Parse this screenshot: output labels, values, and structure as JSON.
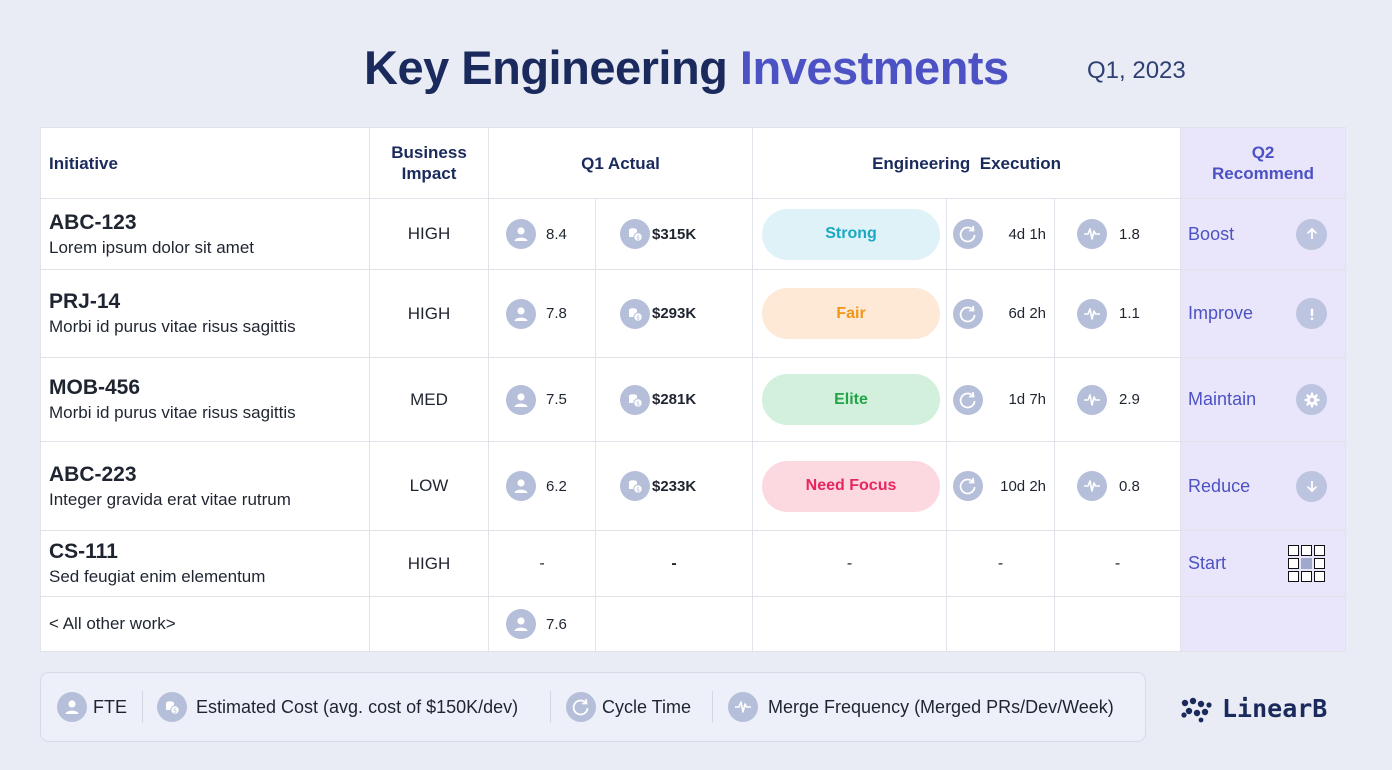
{
  "header": {
    "title_main": "Key Engineering",
    "title_accent": "Investments",
    "period": "Q1, 2023"
  },
  "table": {
    "headers": {
      "initiative": "Initiative",
      "impact": "Business Impact",
      "actual": "Q1 Actual",
      "execution": "Engineering  Execution",
      "recommend": "Q2 Recommend"
    },
    "rows": [
      {
        "id": "ABC-123",
        "desc": "Lorem ipsum dolor sit amet",
        "impact": "HIGH",
        "fte": "8.4",
        "cost": "$315K",
        "status": "Strong",
        "cycle": "4d 1h",
        "merge": "1.8",
        "rec": "Boost",
        "rec_icon": "arrow-up-icon"
      },
      {
        "id": "PRJ-14",
        "desc": "Morbi id purus vitae risus sagittis",
        "impact": "HIGH",
        "fte": "7.8",
        "cost": "$293K",
        "status": "Fair",
        "cycle": "6d 2h",
        "merge": "1.1",
        "rec": "Improve",
        "rec_icon": "exclamation-icon"
      },
      {
        "id": "MOB-456",
        "desc": "Morbi id purus vitae risus sagittis",
        "impact": "MED",
        "fte": "7.5",
        "cost": "$281K",
        "status": "Elite",
        "cycle": "1d 7h",
        "merge": "2.9",
        "rec": "Maintain",
        "rec_icon": "gear-icon"
      },
      {
        "id": "ABC-223",
        "desc": "Integer gravida erat vitae rutrum",
        "impact": "LOW",
        "fte": "6.2",
        "cost": "$233K",
        "status": "Need Focus",
        "cycle": "10d 2h",
        "merge": "0.8",
        "rec": "Reduce",
        "rec_icon": "arrow-down-icon"
      },
      {
        "id": "CS-111",
        "desc": "Sed feugiat enim elementum",
        "impact": "HIGH",
        "fte": "-",
        "cost": "-",
        "status": "-",
        "cycle": "-",
        "merge": "-",
        "rec": "Start",
        "rec_icon": "grid-icon"
      }
    ],
    "other": {
      "label": "< All other work>",
      "fte": "7.6"
    }
  },
  "status_colors": {
    "Strong": {
      "bg": "#dff2f7",
      "fg": "#1aa9c2"
    },
    "Fair": {
      "bg": "#fde9d6",
      "fg": "#f29618"
    },
    "Elite": {
      "bg": "#d2f0dc",
      "fg": "#22a548"
    },
    "Need Focus": {
      "bg": "#fcd8e1",
      "fg": "#e8265d"
    }
  },
  "legend": {
    "fte": "FTE",
    "cost": "Estimated Cost (avg. cost of $150K/dev)",
    "cycle": "Cycle Time",
    "merge": "Merge Frequency (Merged PRs/Dev/Week)"
  },
  "brand": {
    "name": "LinearB"
  },
  "colors": {
    "accent": "#4c52c4",
    "navy": "#1b2a5c",
    "recommend_bg": "#e9e6fb",
    "icon_bg": "#b6bfd9"
  }
}
